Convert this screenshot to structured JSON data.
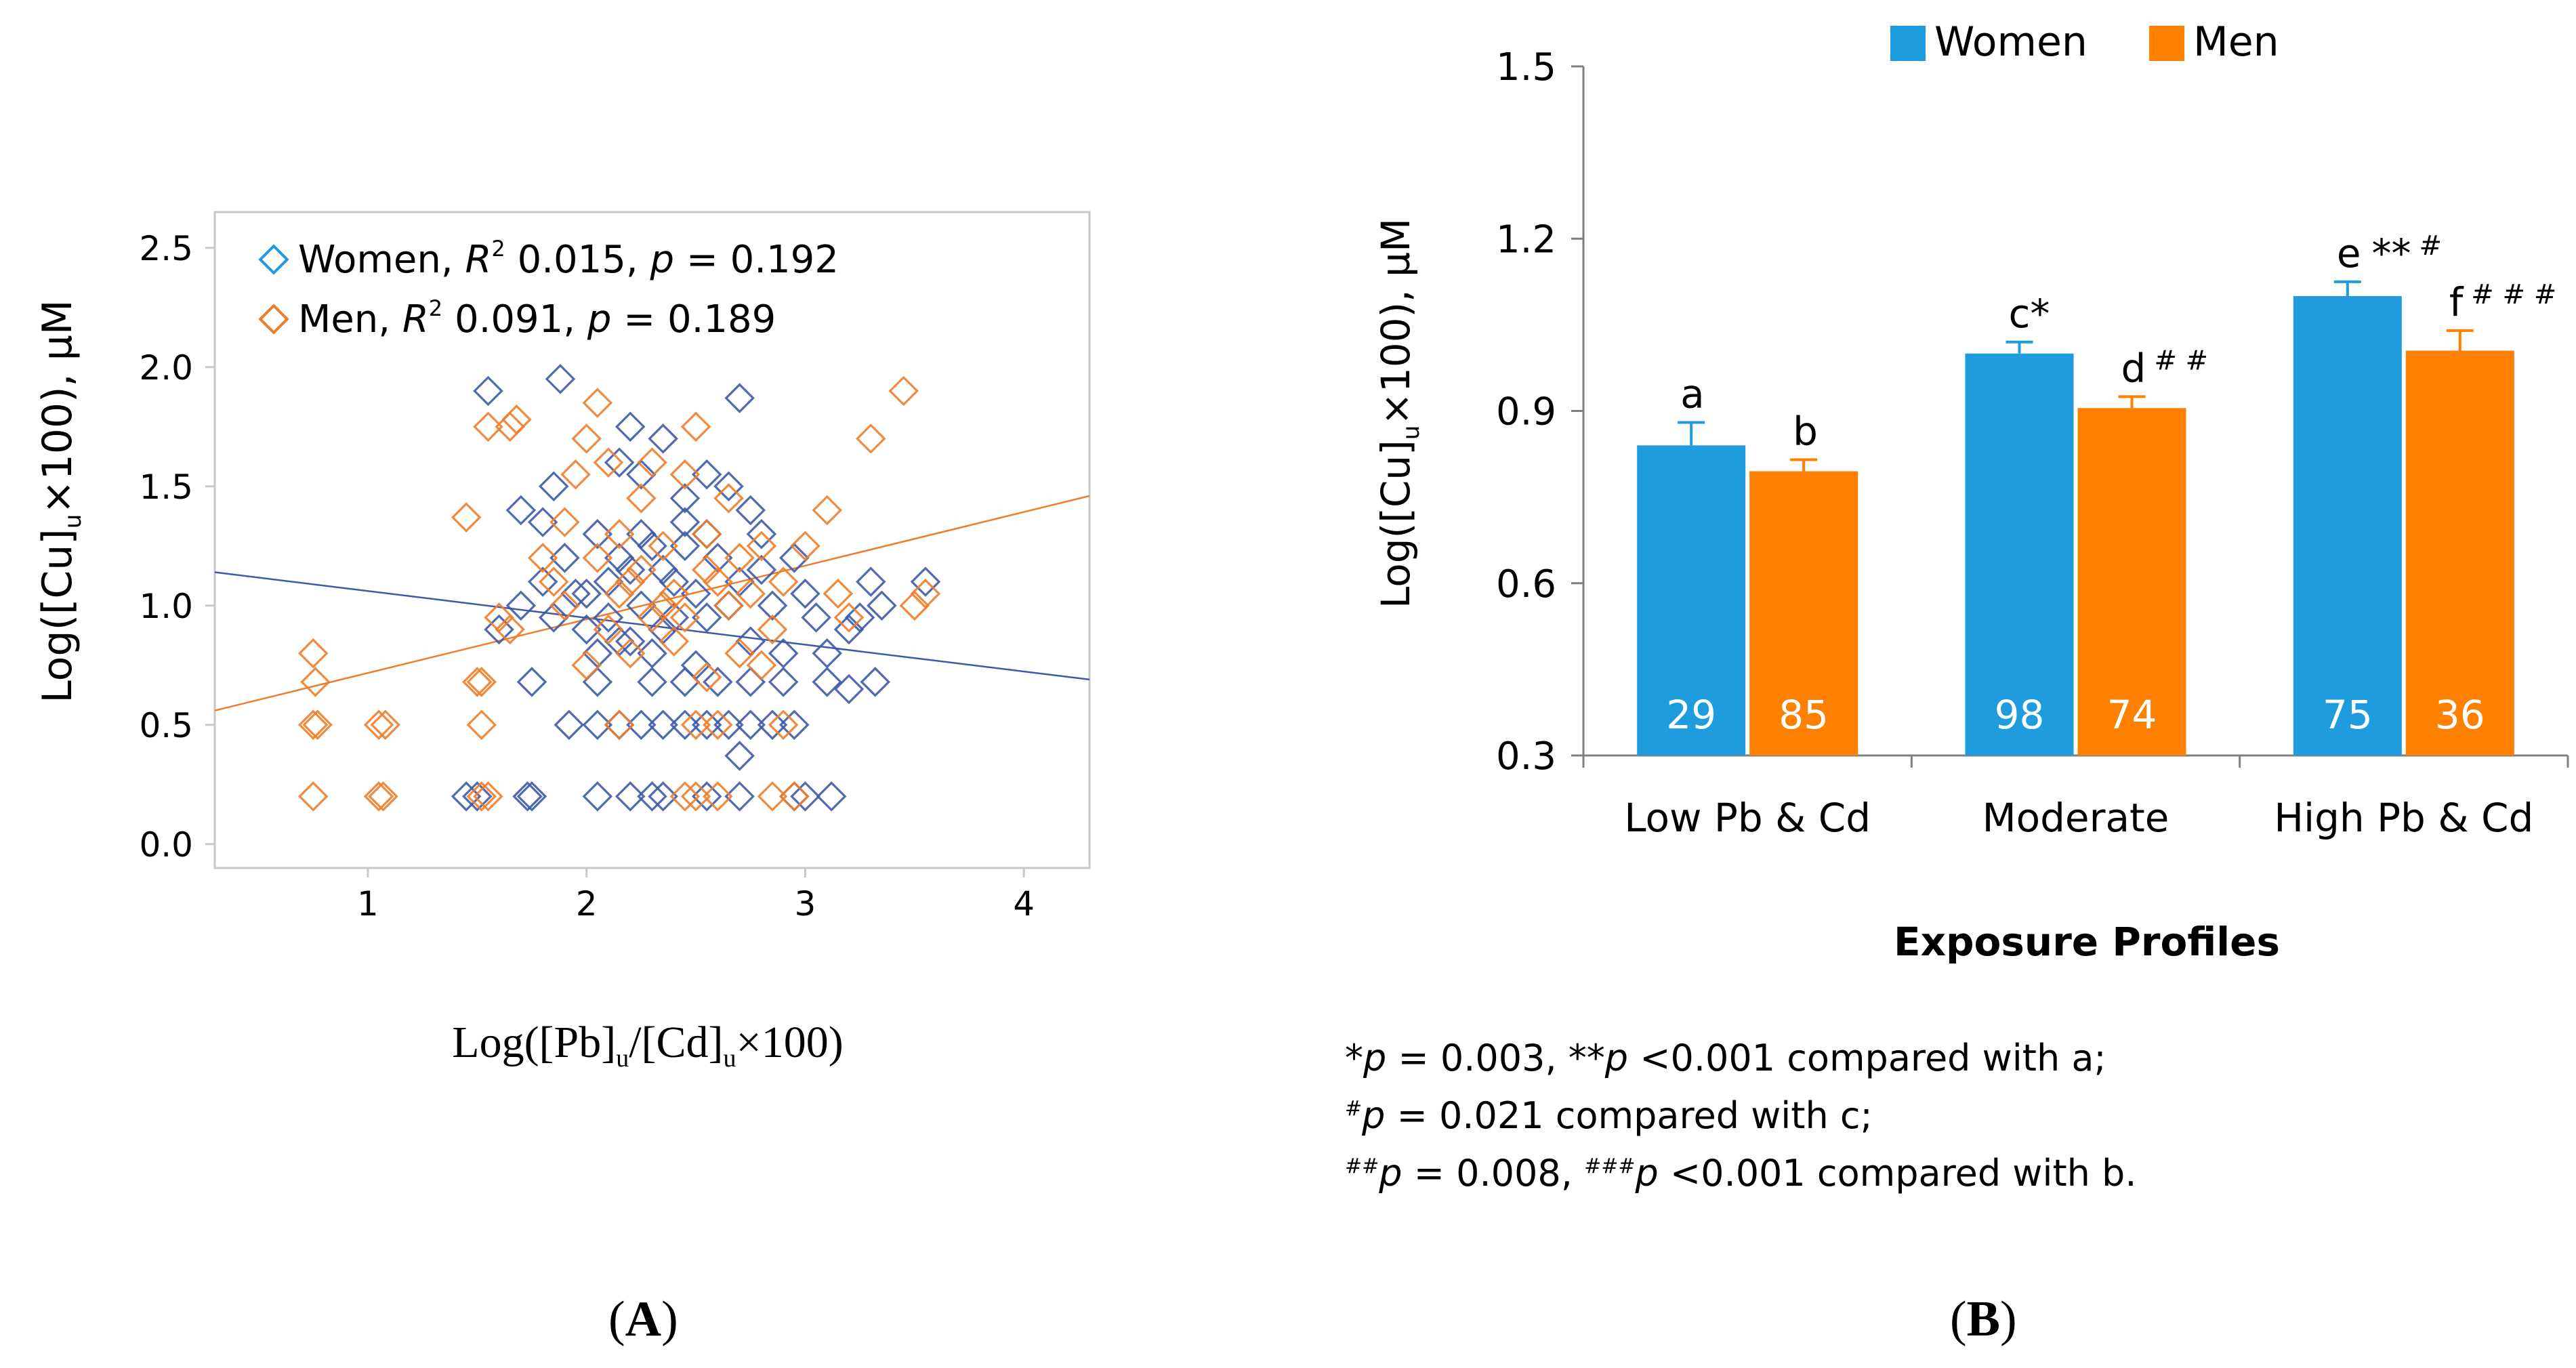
{
  "colors": {
    "women_scatter": "#3d5aa8",
    "men_scatter": "#ee7d2a",
    "women_bar": "#1f9cde",
    "men_bar": "#ff7f00"
  },
  "chart_data": [
    {
      "type": "scatter",
      "panel": "A",
      "panel_label": "A",
      "xlabel": "Log([Pb]u/[Cd]u×100)",
      "xlabel_parts": {
        "pre": "Log([Pb]",
        "sub1": "u",
        "mid": "/[Cd]",
        "sub2": "u",
        "post": "×100)"
      },
      "ylabel": "Log([Cu]u×100), µM",
      "ylabel_parts": {
        "pre": "Log([Cu]",
        "sub": "u",
        "post": "×100), µM"
      },
      "xlim": [
        0.3,
        4.3
      ],
      "ylim": [
        -0.1,
        2.65
      ],
      "xticks": [
        1,
        2,
        3,
        4
      ],
      "yticks": [
        0.0,
        0.5,
        1.0,
        1.5,
        2.0,
        2.5
      ],
      "ytick_labels": [
        "0.0",
        "0.5",
        "1.0",
        "1.5",
        "2.0",
        "2.5"
      ],
      "legend": [
        {
          "name": "Women",
          "r2_label": "R",
          "r2_sup": "2",
          "r2": "0.015",
          "p_label": "p",
          "p": "= 0.192"
        },
        {
          "name": "Men",
          "r2_label": "R",
          "r2_sup": "2",
          "r2": "0.091",
          "p_label": "p",
          "p": "= 0.189"
        }
      ],
      "trend_lines": {
        "Women": {
          "x": [
            0.3,
            4.3
          ],
          "y": [
            1.14,
            0.69
          ]
        },
        "Men": {
          "x": [
            0.3,
            4.3
          ],
          "y": [
            0.56,
            1.46
          ]
        }
      },
      "series": [
        {
          "name": "Women",
          "points": [
            [
              1.45,
              0.2
            ],
            [
              1.5,
              0.2
            ],
            [
              1.73,
              0.2
            ],
            [
              1.75,
              0.2
            ],
            [
              2.05,
              0.2
            ],
            [
              2.2,
              0.2
            ],
            [
              2.3,
              0.2
            ],
            [
              2.35,
              0.2
            ],
            [
              2.55,
              0.2
            ],
            [
              2.7,
              0.2
            ],
            [
              2.95,
              0.2
            ],
            [
              3.0,
              0.2
            ],
            [
              3.12,
              0.2
            ],
            [
              1.92,
              0.5
            ],
            [
              2.05,
              0.5
            ],
            [
              2.15,
              0.5
            ],
            [
              2.25,
              0.5
            ],
            [
              2.35,
              0.5
            ],
            [
              2.45,
              0.5
            ],
            [
              2.55,
              0.5
            ],
            [
              2.65,
              0.5
            ],
            [
              2.75,
              0.5
            ],
            [
              2.85,
              0.5
            ],
            [
              2.95,
              0.5
            ],
            [
              2.7,
              0.37
            ],
            [
              1.75,
              0.68
            ],
            [
              2.05,
              0.68
            ],
            [
              2.3,
              0.68
            ],
            [
              2.45,
              0.68
            ],
            [
              2.6,
              0.68
            ],
            [
              2.75,
              0.68
            ],
            [
              2.9,
              0.68
            ],
            [
              3.1,
              0.68
            ],
            [
              3.2,
              0.65
            ],
            [
              3.32,
              0.68
            ],
            [
              1.6,
              0.9
            ],
            [
              1.7,
              1.0
            ],
            [
              1.8,
              1.1
            ],
            [
              1.85,
              0.95
            ],
            [
              1.9,
              1.2
            ],
            [
              1.95,
              1.05
            ],
            [
              2.0,
              0.9
            ],
            [
              2.05,
              1.3
            ],
            [
              2.1,
              1.1
            ],
            [
              2.15,
              0.85
            ],
            [
              2.2,
              1.15
            ],
            [
              2.25,
              1.0
            ],
            [
              2.3,
              1.25
            ],
            [
              2.35,
              0.9
            ],
            [
              2.4,
              1.1
            ],
            [
              2.45,
              1.35
            ],
            [
              2.5,
              1.05
            ],
            [
              2.55,
              0.95
            ],
            [
              2.6,
              1.2
            ],
            [
              2.65,
              1.0
            ],
            [
              2.7,
              1.1
            ],
            [
              2.75,
              0.85
            ],
            [
              2.8,
              1.15
            ],
            [
              2.85,
              1.0
            ],
            [
              2.9,
              0.8
            ],
            [
              2.95,
              1.2
            ],
            [
              3.0,
              1.05
            ],
            [
              3.05,
              0.95
            ],
            [
              3.1,
              0.8
            ],
            [
              3.2,
              0.9
            ],
            [
              3.25,
              0.95
            ],
            [
              3.3,
              1.1
            ],
            [
              3.35,
              1.0
            ],
            [
              3.55,
              1.1
            ],
            [
              1.7,
              1.4
            ],
            [
              1.8,
              1.35
            ],
            [
              1.85,
              1.5
            ],
            [
              2.15,
              1.6
            ],
            [
              2.25,
              1.55
            ],
            [
              2.35,
              1.7
            ],
            [
              2.45,
              1.45
            ],
            [
              2.55,
              1.55
            ],
            [
              2.65,
              1.5
            ],
            [
              2.75,
              1.4
            ],
            [
              2.8,
              1.3
            ],
            [
              1.55,
              1.9
            ],
            [
              1.88,
              1.95
            ],
            [
              2.7,
              1.87
            ],
            [
              2.2,
              1.75
            ],
            [
              2.0,
              1.05
            ],
            [
              2.1,
              0.95
            ],
            [
              2.2,
              0.85
            ],
            [
              2.3,
              0.8
            ],
            [
              2.4,
              0.95
            ],
            [
              2.5,
              0.75
            ],
            [
              2.15,
              1.2
            ],
            [
              2.25,
              1.3
            ],
            [
              2.35,
              1.15
            ],
            [
              2.45,
              1.25
            ],
            [
              2.55,
              1.3
            ],
            [
              2.05,
              0.8
            ]
          ]
        },
        {
          "name": "Men",
          "points": [
            [
              0.75,
              0.2
            ],
            [
              1.05,
              0.2
            ],
            [
              1.07,
              0.2
            ],
            [
              1.52,
              0.2
            ],
            [
              1.55,
              0.2
            ],
            [
              2.45,
              0.2
            ],
            [
              2.5,
              0.2
            ],
            [
              2.6,
              0.2
            ],
            [
              2.85,
              0.2
            ],
            [
              2.95,
              0.2
            ],
            [
              0.75,
              0.5
            ],
            [
              0.77,
              0.5
            ],
            [
              1.05,
              0.5
            ],
            [
              1.08,
              0.5
            ],
            [
              1.52,
              0.5
            ],
            [
              2.15,
              0.5
            ],
            [
              2.5,
              0.5
            ],
            [
              2.6,
              0.5
            ],
            [
              2.9,
              0.5
            ],
            [
              0.75,
              0.8
            ],
            [
              0.76,
              0.68
            ],
            [
              1.5,
              0.68
            ],
            [
              1.52,
              0.68
            ],
            [
              1.6,
              0.95
            ],
            [
              1.65,
              0.9
            ],
            [
              1.45,
              1.37
            ],
            [
              1.55,
              1.75
            ],
            [
              1.65,
              1.75
            ],
            [
              1.68,
              1.78
            ],
            [
              1.8,
              1.2
            ],
            [
              1.85,
              1.1
            ],
            [
              1.9,
              1.35
            ],
            [
              1.95,
              1.55
            ],
            [
              2.0,
              1.7
            ],
            [
              2.05,
              1.85
            ],
            [
              2.1,
              1.6
            ],
            [
              2.15,
              1.3
            ],
            [
              2.2,
              1.1
            ],
            [
              2.25,
              1.45
            ],
            [
              2.3,
              1.6
            ],
            [
              2.35,
              1.25
            ],
            [
              2.4,
              1.05
            ],
            [
              2.45,
              1.55
            ],
            [
              2.5,
              1.75
            ],
            [
              2.55,
              1.3
            ],
            [
              2.6,
              1.1
            ],
            [
              2.65,
              1.45
            ],
            [
              2.7,
              1.2
            ],
            [
              2.75,
              1.05
            ],
            [
              2.8,
              1.25
            ],
            [
              2.85,
              0.9
            ],
            [
              2.9,
              1.1
            ],
            [
              3.0,
              1.25
            ],
            [
              3.1,
              1.4
            ],
            [
              3.15,
              1.05
            ],
            [
              3.2,
              0.95
            ],
            [
              3.3,
              1.7
            ],
            [
              3.45,
              1.9
            ],
            [
              3.5,
              1.0
            ],
            [
              3.55,
              1.05
            ],
            [
              2.0,
              0.75
            ],
            [
              2.1,
              0.9
            ],
            [
              2.2,
              0.8
            ],
            [
              2.3,
              0.95
            ],
            [
              2.4,
              0.85
            ],
            [
              2.55,
              0.7
            ],
            [
              2.7,
              0.8
            ],
            [
              2.8,
              0.75
            ],
            [
              1.9,
              1.0
            ],
            [
              2.05,
              1.2
            ],
            [
              2.15,
              1.05
            ],
            [
              2.25,
              1.15
            ],
            [
              2.35,
              1.0
            ],
            [
              2.45,
              0.95
            ],
            [
              2.55,
              1.15
            ],
            [
              2.65,
              1.0
            ]
          ]
        }
      ]
    },
    {
      "type": "bar",
      "panel": "B",
      "panel_label": "B",
      "title": "",
      "xlabel": "Exposure Profiles",
      "ylabel": "Log([Cu]u×100), µM",
      "ylabel_parts": {
        "pre": "Log([Cu]",
        "sub": "u",
        "post": "×100), µM"
      },
      "ylim": [
        0.3,
        1.5
      ],
      "yticks": [
        "0.3",
        "0.6",
        "0.9",
        "1.2",
        "1.5"
      ],
      "categories": [
        "Low Pb & Cd",
        "Moderate",
        "High Pb & Cd"
      ],
      "legend": [
        "Women",
        "Men"
      ],
      "series": [
        {
          "name": "Women",
          "values": [
            0.84,
            1.0,
            1.1
          ],
          "errors": [
            0.04,
            0.02,
            0.025
          ],
          "n": [
            "29",
            "98",
            "75"
          ],
          "letters": [
            "a",
            "c",
            "e"
          ],
          "marks": [
            "",
            "*",
            "**"
          ],
          "hash_marks": [
            "",
            "",
            "#"
          ]
        },
        {
          "name": "Men",
          "values": [
            0.795,
            0.905,
            1.005
          ],
          "errors": [
            0.02,
            0.02,
            0.035
          ],
          "n": [
            "85",
            "74",
            "36"
          ],
          "letters": [
            "b",
            "d",
            "f"
          ],
          "marks": [
            "",
            "",
            ""
          ],
          "hash_marks": [
            "",
            "##",
            "###"
          ]
        }
      ]
    }
  ],
  "footnotes": {
    "line1": {
      "s1": "*",
      "p1": "p",
      "t1": " = 0.003, **",
      "p2": "p",
      "t2": " <0.001 compared with a;"
    },
    "line2": {
      "sup": "#",
      "p": "p",
      "t": " = 0.021 compared with c;"
    },
    "line3": {
      "sup1": "##",
      "p1": "p",
      "t1": " = 0.008, ",
      "sup2": "###",
      "p2": "p",
      "t2": " <0.001 compared with b."
    }
  }
}
